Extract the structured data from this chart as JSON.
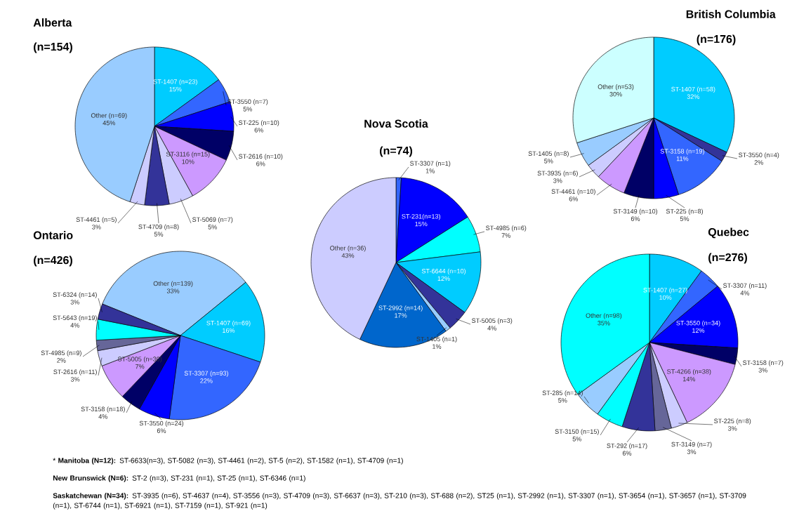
{
  "chart_data": [
    {
      "type": "pie",
      "title": "Alberta",
      "subtitle": "(n=154)",
      "categories": [
        "ST-1407 (n=23)",
        "ST-3550 (n=7)",
        "ST-225 (n=10)",
        "ST-2616 (n=10)",
        "ST-3116 (n=15)",
        "ST-5069 (n=7)",
        "ST-4709 (n=8)",
        "ST-4461 (n=5)",
        "Other (n=69)"
      ],
      "values": [
        15,
        5,
        6,
        6,
        10,
        5,
        5,
        3,
        45
      ],
      "value_labels": [
        "15%",
        "5%",
        "6%",
        "6%",
        "10%",
        "5%",
        "5%",
        "3%",
        "45%"
      ],
      "colors": [
        "#00ccff",
        "#3366ff",
        "#0000ff",
        "#000066",
        "#cc99ff",
        "#ccccff",
        "#333399",
        "#ccccff",
        "#99ccff"
      ]
    },
    {
      "type": "pie",
      "title": "British Columbia",
      "subtitle": "(n=176)",
      "categories": [
        "ST-1407 (n=58)",
        "ST-3550 (n=4)",
        "ST-3158 (n=19)",
        "ST-225 (n=8)",
        "ST-3149 (n=10)",
        "ST-4461 (n=10)",
        "ST-3935 (n=6)",
        "ST-1405 (n=8)",
        "Other (n=53)"
      ],
      "values": [
        32,
        2,
        11,
        5,
        6,
        6,
        3,
        5,
        30
      ],
      "value_labels": [
        "32%",
        "2%",
        "11%",
        "5%",
        "6%",
        "6%",
        "3%",
        "5%",
        "30%"
      ],
      "colors": [
        "#00ccff",
        "#333399",
        "#3366ff",
        "#0000ff",
        "#000066",
        "#cc99ff",
        "#ccccff",
        "#99ccff",
        "#ccffff"
      ]
    },
    {
      "type": "pie",
      "title": "Nova Scotia",
      "subtitle": "(n=74)",
      "categories": [
        "ST-3307 (n=1)",
        "ST-231(n=13)",
        "ST-4985 (n=6)",
        "ST-6644 (n=10)",
        "ST-5005 (n=3)",
        "ST-1405 (n=1)",
        "ST-2992 (n=14)",
        "Other (n=36)"
      ],
      "values": [
        1,
        15,
        7,
        12,
        4,
        1,
        17,
        43
      ],
      "value_labels": [
        "1%",
        "15%",
        "7%",
        "12%",
        "4%",
        "1%",
        "17%",
        "43%"
      ],
      "colors": [
        "#3366ff",
        "#0000ff",
        "#00ffff",
        "#00ccff",
        "#333399",
        "#99ccff",
        "#0066cc",
        "#ccccff"
      ]
    },
    {
      "type": "pie",
      "title": "Ontario",
      "subtitle": "(n=426)",
      "categories": [
        "Other (n=139)",
        "ST-1407 (n=69)",
        "ST-3307 (n=93)",
        "ST-3550 (n=24)",
        "ST-3158 (n=18)",
        "ST-5005 (n=30)",
        "ST-2616 (n=11)",
        "ST-4985 (n=9)",
        "ST-5643 (n=19)",
        "ST-6324 (n=14)"
      ],
      "values": [
        33,
        16,
        22,
        6,
        4,
        7,
        3,
        2,
        4,
        3
      ],
      "value_labels": [
        "33%",
        "16%",
        "22%",
        "6%",
        "4%",
        "7%",
        "3%",
        "2%",
        "4%",
        "3%"
      ],
      "colors": [
        "#99ccff",
        "#00ccff",
        "#3366ff",
        "#0000ff",
        "#000066",
        "#cc99ff",
        "#ccccff",
        "#666699",
        "#00ffff",
        "#333399"
      ]
    },
    {
      "type": "pie",
      "title": "Quebec",
      "subtitle": "(n=276)",
      "categories": [
        "ST-1407 (n=27)",
        "ST-3307 (n=11)",
        "ST-3550 (n=34)",
        "ST-3158 (n=7)",
        "ST-4266 (n=38)",
        "ST-225 (n=8)",
        "ST-3149 (n=7)",
        "ST-292 (n=17)",
        "ST-3150 (n=15)",
        "ST-285 (n=14)",
        "Other (n=98)"
      ],
      "values": [
        10,
        4,
        12,
        3,
        14,
        3,
        3,
        6,
        5,
        5,
        35
      ],
      "value_labels": [
        "10%",
        "4%",
        "12%",
        "3%",
        "14%",
        "3%",
        "3%",
        "6%",
        "5%",
        "5%",
        "35%"
      ],
      "colors": [
        "#00ccff",
        "#3366ff",
        "#0000ff",
        "#000066",
        "#cc99ff",
        "#ccccff",
        "#666699",
        "#333399",
        "#00ffff",
        "#99ccff",
        "#00ffff"
      ]
    },
    {
      "type": "other",
      "annotations": [
        "* **Manitoba (N=12):** ST-6633(n=3), ST-5082 (n=3), ST-4461 (n=2), ST-5 (n=2), ST-1582 (n=1), ST-4709 (n=1)",
        "**New Brunswick (N=6):** ST-2 (n=3), ST-231 (n=1), ST-25 (n=1), ST-6346 (n=1)",
        "**Saskatchewan (N=34):** ST-3935 (n=6), ST-4637 (n=4), ST-3556 (n=3), ST-4709 (n=3), ST-6637 (n=3), ST-210 (n=3), ST-688 (n=2), ST25 (n=1), ST-2992 (n=1), ST-3307 (n=1), ST-3654 (n=1), ST-3657 (n=1), ST-3709 (n=1), ST-6744 (n=1), ST-6921 (n=1), ST-7159 (n=1), ST-921 (n=1)"
      ]
    }
  ]
}
